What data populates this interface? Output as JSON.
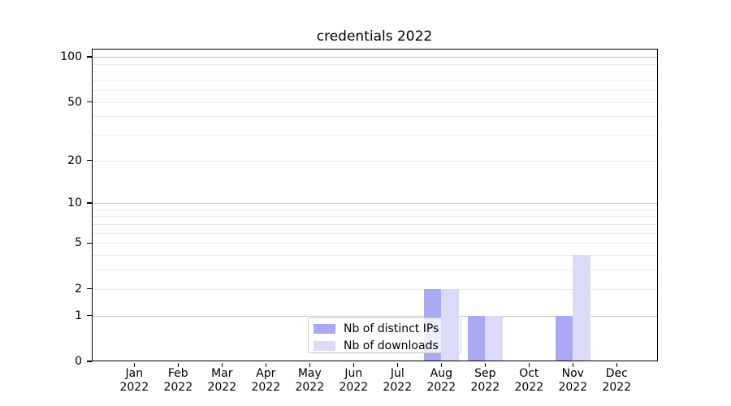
{
  "chart_data": {
    "type": "bar",
    "title": "credentials 2022",
    "categories": [
      "Jan",
      "Feb",
      "Mar",
      "Apr",
      "May",
      "Jun",
      "Jul",
      "Aug",
      "Sep",
      "Oct",
      "Nov",
      "Dec"
    ],
    "category_year": "2022",
    "series": [
      {
        "name": "Nb of distinct IPs",
        "color": "#a9a9f4",
        "values": [
          0,
          0,
          0,
          0,
          0,
          0,
          0,
          2,
          1,
          0,
          1,
          0
        ]
      },
      {
        "name": "Nb of downloads",
        "color": "#dbdbf9",
        "values": [
          0,
          0,
          0,
          0,
          0,
          0,
          0,
          2,
          1,
          0,
          4,
          0
        ]
      }
    ],
    "xlabel": "",
    "ylabel": "",
    "yscale": "log10(value+1)",
    "ylim": [
      0,
      113
    ],
    "yticks": [
      0,
      1,
      2,
      5,
      10,
      20,
      50,
      100
    ],
    "major_gridlines": [
      1,
      10,
      100
    ],
    "minor_gridlines": [
      2,
      3,
      4,
      5,
      6,
      7,
      8,
      9,
      20,
      30,
      40,
      50,
      60,
      70,
      80,
      90
    ],
    "grid": "horizontal",
    "legend_position": "inside lower-center"
  },
  "colors": {
    "background": "#ffffff",
    "axis": "#000000",
    "major_grid": "#c3c3c3",
    "minor_grid": "#eaeaea",
    "legend_border": "#cbcbcb"
  }
}
